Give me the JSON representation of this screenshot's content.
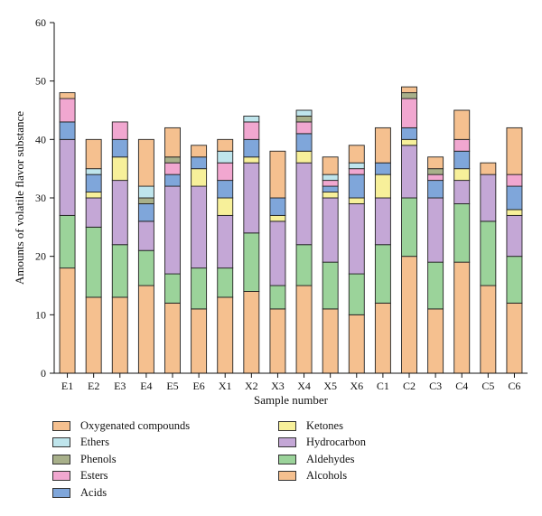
{
  "chart_data": {
    "type": "bar",
    "stacked": true,
    "title": "",
    "xlabel": "Sample number",
    "ylabel": "Amounts of volatile flavor substance",
    "ylim": [
      0,
      60
    ],
    "yticks": [
      0,
      10,
      20,
      30,
      40,
      50,
      60
    ],
    "grid": false,
    "legend_position": "bottom",
    "categories": [
      "E1",
      "E2",
      "E3",
      "E4",
      "E5",
      "E6",
      "X1",
      "X2",
      "X3",
      "X4",
      "X5",
      "X6",
      "C1",
      "C2",
      "C3",
      "C4",
      "C5",
      "C6"
    ],
    "series": [
      {
        "name": "Alcohols",
        "color": "#F5C08F",
        "values": [
          18,
          13,
          13,
          15,
          12,
          11,
          13,
          14,
          11,
          15,
          11,
          10,
          12,
          20,
          11,
          19,
          15,
          12
        ]
      },
      {
        "name": "Aldehydes",
        "color": "#9BD39A",
        "values": [
          9,
          12,
          9,
          6,
          5,
          7,
          5,
          10,
          4,
          7,
          8,
          7,
          10,
          10,
          8,
          10,
          11,
          8
        ]
      },
      {
        "name": "Hydrocarbon",
        "color": "#C4A7D6",
        "values": [
          13,
          5,
          11,
          5,
          15,
          14,
          9,
          12,
          11,
          14,
          11,
          12,
          8,
          9,
          11,
          4,
          8,
          7
        ]
      },
      {
        "name": "Ketones",
        "color": "#F7F09A",
        "values": [
          0,
          1,
          4,
          0,
          0,
          3,
          3,
          1,
          1,
          2,
          1,
          1,
          4,
          1,
          0,
          2,
          0,
          1
        ]
      },
      {
        "name": "Acids",
        "color": "#7FA6DA",
        "values": [
          3,
          3,
          3,
          3,
          2,
          2,
          3,
          3,
          3,
          3,
          1,
          4,
          2,
          2,
          3,
          3,
          0,
          4
        ]
      },
      {
        "name": "Esters",
        "color": "#F1A7D0",
        "values": [
          4,
          0,
          3,
          0,
          2,
          0,
          3,
          3,
          0,
          2,
          1,
          1,
          0,
          5,
          1,
          2,
          0,
          2
        ]
      },
      {
        "name": "Phenols",
        "color": "#A8B08A",
        "values": [
          0,
          0,
          0,
          1,
          1,
          0,
          0,
          0,
          0,
          1,
          0,
          0,
          0,
          1,
          1,
          0,
          0,
          0
        ]
      },
      {
        "name": "Ethers",
        "color": "#BFE5EC",
        "values": [
          0,
          1,
          0,
          2,
          0,
          0,
          2,
          1,
          0,
          1,
          1,
          1,
          0,
          0,
          0,
          0,
          0,
          0
        ]
      },
      {
        "name": "Oxygenated compounds",
        "color": "#F5C08F",
        "values": [
          1,
          5,
          0,
          8,
          5,
          2,
          2,
          0,
          8,
          0,
          3,
          3,
          6,
          1,
          2,
          5,
          2,
          8
        ]
      }
    ],
    "legend_order": [
      "Oxygenated compounds",
      "Ethers",
      "Phenols",
      "Esters",
      "Acids",
      "Ketones",
      "Hydrocarbon",
      "Aldehydes",
      "Alcohols"
    ]
  }
}
